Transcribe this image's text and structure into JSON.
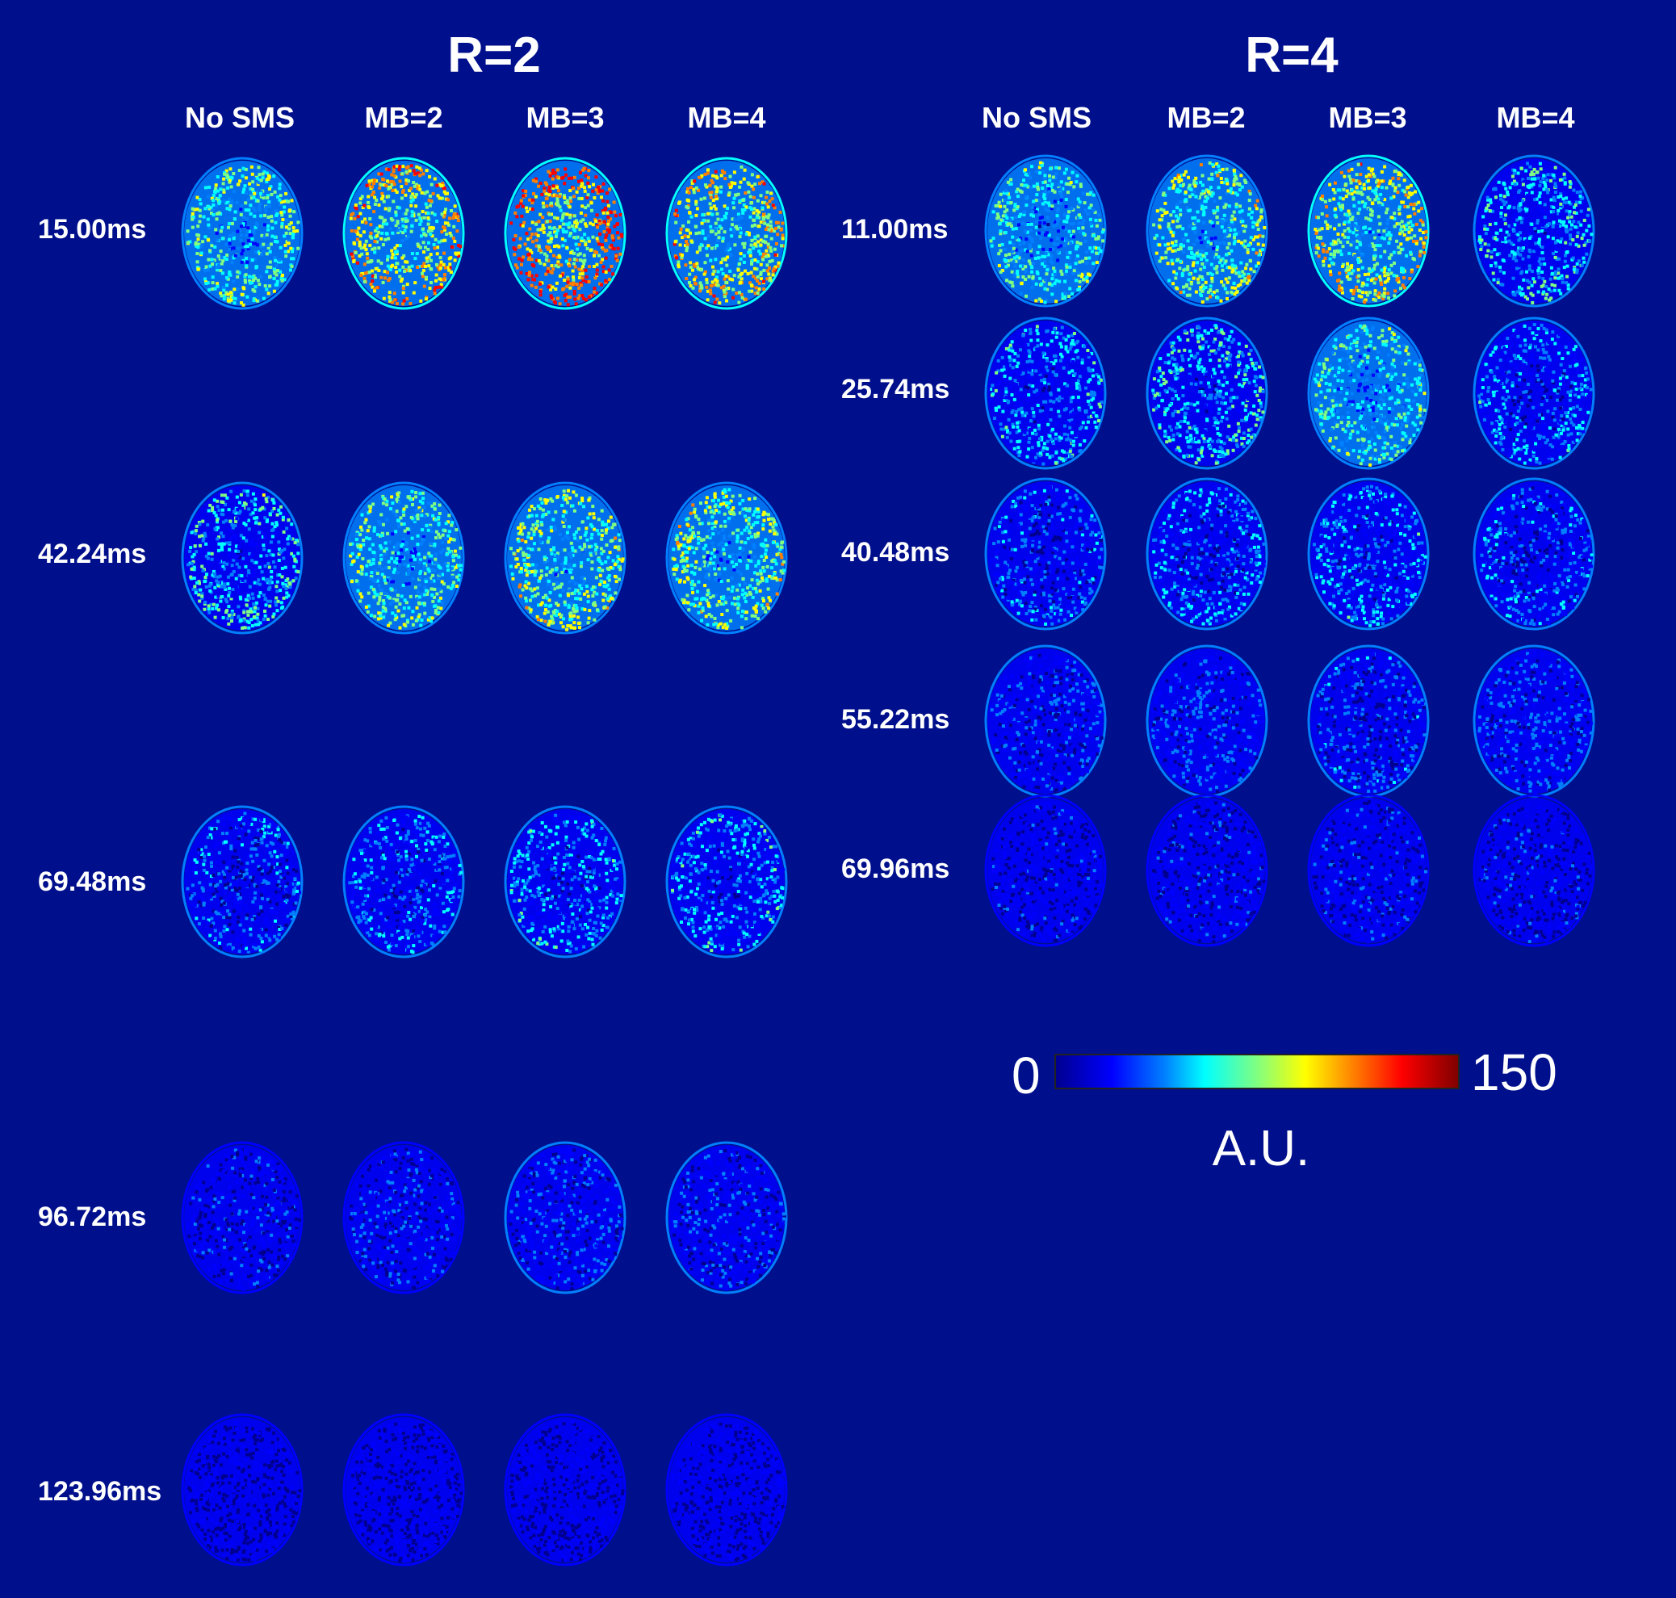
{
  "colors": {
    "background": "#000f8b",
    "colormap": [
      "#00008f",
      "#0000ff",
      "#0080ff",
      "#00ffff",
      "#80ff80",
      "#ffff00",
      "#ff8000",
      "#ff0000",
      "#800000"
    ]
  },
  "groups": [
    {
      "title": "R=2",
      "columns": [
        "No SMS",
        "MB=2",
        "MB=3",
        "MB=4"
      ],
      "rows": [
        {
          "label": "15.00ms",
          "intensity": [
            0.5,
            0.7,
            0.82,
            0.66
          ]
        },
        {
          "label": "42.24ms",
          "intensity": [
            0.4,
            0.48,
            0.55,
            0.55
          ]
        },
        {
          "label": "69.48ms",
          "intensity": [
            0.24,
            0.28,
            0.32,
            0.32
          ]
        },
        {
          "label": "96.72ms",
          "intensity": [
            0.14,
            0.16,
            0.18,
            0.18
          ]
        },
        {
          "label": "123.96ms",
          "intensity": [
            0.09,
            0.1,
            0.11,
            0.11
          ]
        }
      ]
    },
    {
      "title": "R=4",
      "columns": [
        "No SMS",
        "MB=2",
        "MB=3",
        "MB=4"
      ],
      "rows": [
        {
          "label": "11.00ms",
          "intensity": [
            0.45,
            0.56,
            0.62,
            0.4
          ]
        },
        {
          "label": "25.74ms",
          "intensity": [
            0.34,
            0.4,
            0.44,
            0.3
          ]
        },
        {
          "label": "40.48ms",
          "intensity": [
            0.24,
            0.28,
            0.3,
            0.26
          ]
        },
        {
          "label": "55.22ms",
          "intensity": [
            0.17,
            0.19,
            0.21,
            0.19
          ]
        },
        {
          "label": "69.96ms",
          "intensity": [
            0.13,
            0.14,
            0.15,
            0.14
          ]
        }
      ]
    }
  ],
  "colorbar": {
    "min": "0",
    "max": "150",
    "unit": "A.U."
  }
}
